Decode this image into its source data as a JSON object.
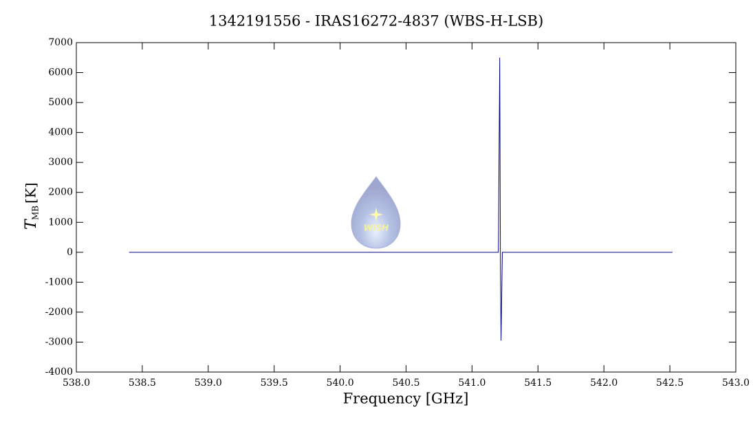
{
  "chart_data": {
    "type": "line",
    "title": "1342191556 - IRAS16272-4837 (WBS-H-LSB)",
    "x_label": "Frequency [GHz]",
    "y_label": {
      "symbol": "T",
      "subscript": "MB",
      "unit": "[K]"
    },
    "logo_text": "WISH",
    "series": [
      {
        "color": "#00007f",
        "x": [
          538.4,
          541.2,
          541.21,
          541.215,
          541.22,
          541.23,
          542.52
        ],
        "values": [
          0,
          0,
          6500,
          -50,
          -2950,
          0,
          0
        ]
      }
    ],
    "xlim": [
      538.0,
      543.0
    ],
    "xticks": [
      {
        "value": 538.0,
        "label": "538.0"
      },
      {
        "value": 538.5,
        "label": "538.5"
      },
      {
        "value": 539.0,
        "label": "539.0"
      },
      {
        "value": 539.5,
        "label": "539.5"
      },
      {
        "value": 540.0,
        "label": "540.0"
      },
      {
        "value": 540.5,
        "label": "540.5"
      },
      {
        "value": 541.0,
        "label": "541.0"
      },
      {
        "value": 541.5,
        "label": "541.5"
      },
      {
        "value": 542.0,
        "label": "542.0"
      },
      {
        "value": 542.5,
        "label": "542.5"
      },
      {
        "value": 543.0,
        "label": "543.0"
      }
    ],
    "ylim": [
      -4000,
      7000
    ],
    "yticks": [
      -4000,
      -3000,
      -2000,
      -1000,
      0,
      1000,
      2000,
      3000,
      4000,
      5000,
      6000,
      7000
    ],
    "grid": false
  }
}
